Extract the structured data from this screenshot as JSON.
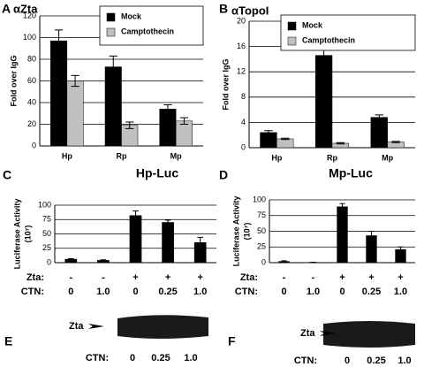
{
  "chart_data": [
    {
      "type": "bar",
      "label": "A",
      "title": "αZta",
      "y_label": [
        "Fold over IgG"
      ],
      "categories": [
        "Hp",
        "Rp",
        "Mp"
      ],
      "series": [
        {
          "name": "Mock",
          "color": "#000000",
          "values": [
            97,
            73,
            34
          ],
          "errors": [
            10,
            10,
            4
          ]
        },
        {
          "name": "Camptothecin",
          "color": "#c0c0c0",
          "values": [
            60,
            19,
            23
          ],
          "errors": [
            5,
            3,
            3
          ]
        }
      ],
      "ylim": [
        0,
        120
      ],
      "yticks": [
        0,
        20,
        40,
        60,
        80,
        100,
        120
      ],
      "grid": true,
      "legend": "top-right"
    },
    {
      "type": "bar",
      "label": "B",
      "title": "αTopoI",
      "y_label": [
        "Fold over IgG"
      ],
      "categories": [
        "Hp",
        "Rp",
        "Mp"
      ],
      "series": [
        {
          "name": "Mock",
          "color": "#000000",
          "values": [
            2.4,
            14.6,
            4.8
          ],
          "errors": [
            0.3,
            1.8,
            0.4
          ]
        },
        {
          "name": "Camptothecin",
          "color": "#c0c0c0",
          "values": [
            1.4,
            0.7,
            0.9
          ],
          "errors": [
            0.1,
            0.1,
            0.1
          ]
        }
      ],
      "ylim": [
        0,
        20
      ],
      "yticks": [
        0,
        4,
        8,
        12,
        16,
        20
      ],
      "grid": true,
      "legend": "top-right"
    },
    {
      "type": "bar",
      "label": "C",
      "title": "Hp-Luc",
      "y_label": [
        "Luciferase Activity",
        "(10⁷)"
      ],
      "series": [
        {
          "color": "#000000",
          "values": [
            6,
            4,
            82,
            70,
            35
          ],
          "errors": [
            1,
            1,
            8,
            4,
            9
          ]
        }
      ],
      "row_labels": [
        {
          "name": "Zta:",
          "labels": [
            "-",
            "-",
            "+",
            "+",
            "+"
          ]
        },
        {
          "name": "CTN:",
          "labels": [
            "0",
            "1.0",
            "0",
            "0.25",
            "1.0"
          ]
        }
      ],
      "ylim": [
        0,
        100
      ],
      "yticks": [
        0,
        25,
        50,
        75,
        100
      ],
      "grid": true
    },
    {
      "type": "bar",
      "label": "D",
      "title": "Mp-Luc",
      "y_label": [
        "Luciferase Activity",
        "(10⁷)"
      ],
      "series": [
        {
          "color": "#000000",
          "values": [
            2,
            0.5,
            89,
            43,
            21
          ],
          "errors": [
            1,
            0.2,
            5,
            7,
            4
          ]
        }
      ],
      "row_labels": [
        {
          "name": "Zta:",
          "labels": [
            "-",
            "-",
            "+",
            "+",
            "+"
          ]
        },
        {
          "name": "CTN:",
          "labels": [
            "0",
            "1.0",
            "0",
            "0.25",
            "1.0"
          ]
        }
      ],
      "ylim": [
        0,
        100
      ],
      "yticks": [
        0,
        25,
        50,
        75,
        100
      ],
      "grid": true
    }
  ],
  "blots": [
    {
      "label": "E",
      "target": "Zta",
      "condition_name": "CTN:",
      "conditions": [
        "0",
        "0.25",
        "1.0"
      ]
    },
    {
      "label": "F",
      "target": "Zta",
      "condition_name": "CTN:",
      "conditions": [
        "0",
        "0.25",
        "1.0"
      ]
    }
  ]
}
